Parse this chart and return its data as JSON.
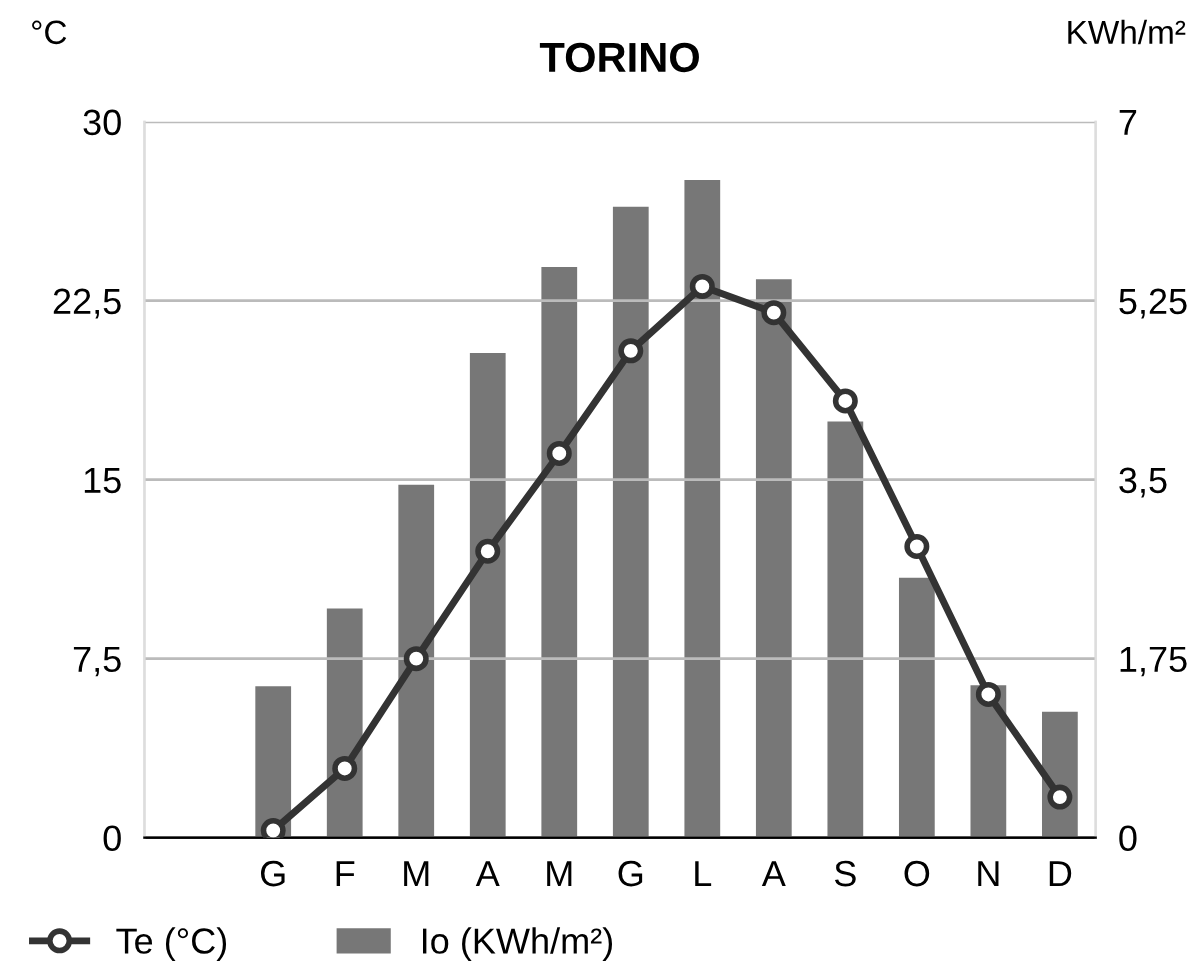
{
  "chart_data": {
    "type": "bar",
    "title": "TORINO",
    "ylabel": "°C",
    "y2label": "KWh/m²",
    "categories": [
      "G",
      "F",
      "M",
      "A",
      "M",
      "G",
      "L",
      "A",
      "S",
      "O",
      "N",
      "D"
    ],
    "series": [
      {
        "name": "Io (KWh/m²)",
        "axis": "y2",
        "color": "#777777",
        "values": [
          1.48,
          2.24,
          3.45,
          4.74,
          5.58,
          6.17,
          6.43,
          5.46,
          4.07,
          2.54,
          1.49,
          1.23
        ]
      },
      {
        "name": "Te (°C)",
        "type": "line",
        "color": "#333333",
        "marker": "circle",
        "line_style": "solid",
        "values": [
          0.3,
          2.9,
          7.5,
          12.0,
          16.1,
          20.4,
          23.1,
          22.0,
          18.3,
          12.2,
          6.0,
          1.7
        ]
      }
    ],
    "ylim": [
      0,
      30
    ],
    "yticks": [
      0,
      {
        "value": 7.5,
        "label": "7,5"
      },
      15,
      {
        "value": 22.5,
        "label": "22,5"
      },
      30
    ],
    "y2lim": [
      0,
      7
    ],
    "y2ticks": [
      0,
      {
        "value": 1.75,
        "label": "1,75"
      },
      {
        "value": 3.5,
        "label": "3,5"
      },
      {
        "value": 5.25,
        "label": "5,25"
      },
      7
    ],
    "grid": "y",
    "legend": "bottom left"
  }
}
